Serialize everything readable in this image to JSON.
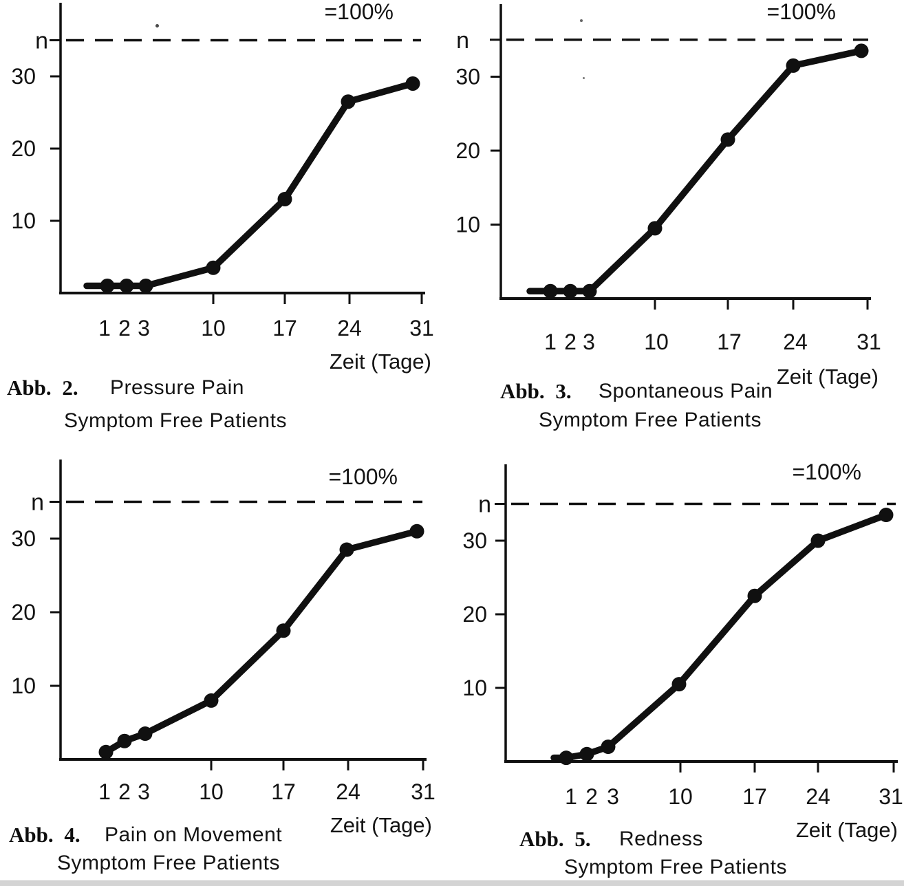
{
  "page": {
    "background_color": "#ffffff",
    "ink_color": "#101010",
    "bottom_bar_color": "#d4d4d4"
  },
  "chart_data": [
    {
      "type": "line",
      "figure_label": "Abb. 2.",
      "title": "Pressure Pain",
      "subtitle": "Symptom Free Patients",
      "xlabel": "Zeit (Tage)",
      "ylabel": "n",
      "reference_line": {
        "label": "=100%",
        "value": 35,
        "style": "dashed"
      },
      "x": [
        1,
        2,
        3,
        10,
        17,
        24,
        31
      ],
      "values": [
        1,
        1,
        1,
        3.5,
        13,
        26.5,
        29
      ],
      "x_tick_labels": [
        "1",
        "2",
        "3",
        "10",
        "17",
        "24",
        "31"
      ],
      "y_ticks": [
        10,
        20,
        30
      ],
      "ylim": [
        0,
        39
      ],
      "grid": false,
      "legend": "none"
    },
    {
      "type": "line",
      "figure_label": "Abb. 3.",
      "title": "Spontaneous Pain",
      "subtitle": "Symptom Free Patients",
      "xlabel": "Zeit (Tage)",
      "ylabel": "n",
      "reference_line": {
        "label": "=100%",
        "value": 35,
        "style": "dashed"
      },
      "x": [
        1,
        2,
        3,
        10,
        17,
        24,
        31
      ],
      "values": [
        1,
        1,
        1,
        9.5,
        21.5,
        31.5,
        33.5
      ],
      "x_tick_labels": [
        "1",
        "2",
        "3",
        "10",
        "17",
        "24",
        "31"
      ],
      "y_ticks": [
        10,
        20,
        30
      ],
      "ylim": [
        0,
        39
      ],
      "grid": false,
      "legend": "none"
    },
    {
      "type": "line",
      "figure_label": "Abb. 4.",
      "title": "Pain on Movement",
      "subtitle": "Symptom Free Patients",
      "xlabel": "Zeit (Tage)",
      "ylabel": "n",
      "reference_line": {
        "label": "=100%",
        "value": 35,
        "style": "dashed"
      },
      "x": [
        1,
        2,
        3,
        10,
        17,
        24,
        31
      ],
      "values": [
        1,
        2.5,
        3.5,
        8,
        17.5,
        28.5,
        31
      ],
      "x_tick_labels": [
        "1",
        "2",
        "3",
        "10",
        "17",
        "24",
        "31"
      ],
      "y_ticks": [
        10,
        20,
        30
      ],
      "ylim": [
        0,
        39
      ],
      "grid": false,
      "legend": "none"
    },
    {
      "type": "line",
      "figure_label": "Abb. 5.",
      "title": "Redness",
      "subtitle": "Symptom Free Patients",
      "xlabel": "Zeit (Tage)",
      "ylabel": "n",
      "reference_line": {
        "label": "=100%",
        "value": 35,
        "style": "dashed"
      },
      "x": [
        1,
        2,
        3,
        10,
        17,
        24,
        31
      ],
      "values": [
        0.5,
        1,
        2,
        10.5,
        22.5,
        30,
        33.5
      ],
      "x_tick_labels": [
        "1",
        "2",
        "3",
        "10",
        "17",
        "24",
        "31"
      ],
      "y_ticks": [
        10,
        20,
        30
      ],
      "ylim": [
        0,
        39
      ],
      "grid": false,
      "legend": "none"
    }
  ]
}
